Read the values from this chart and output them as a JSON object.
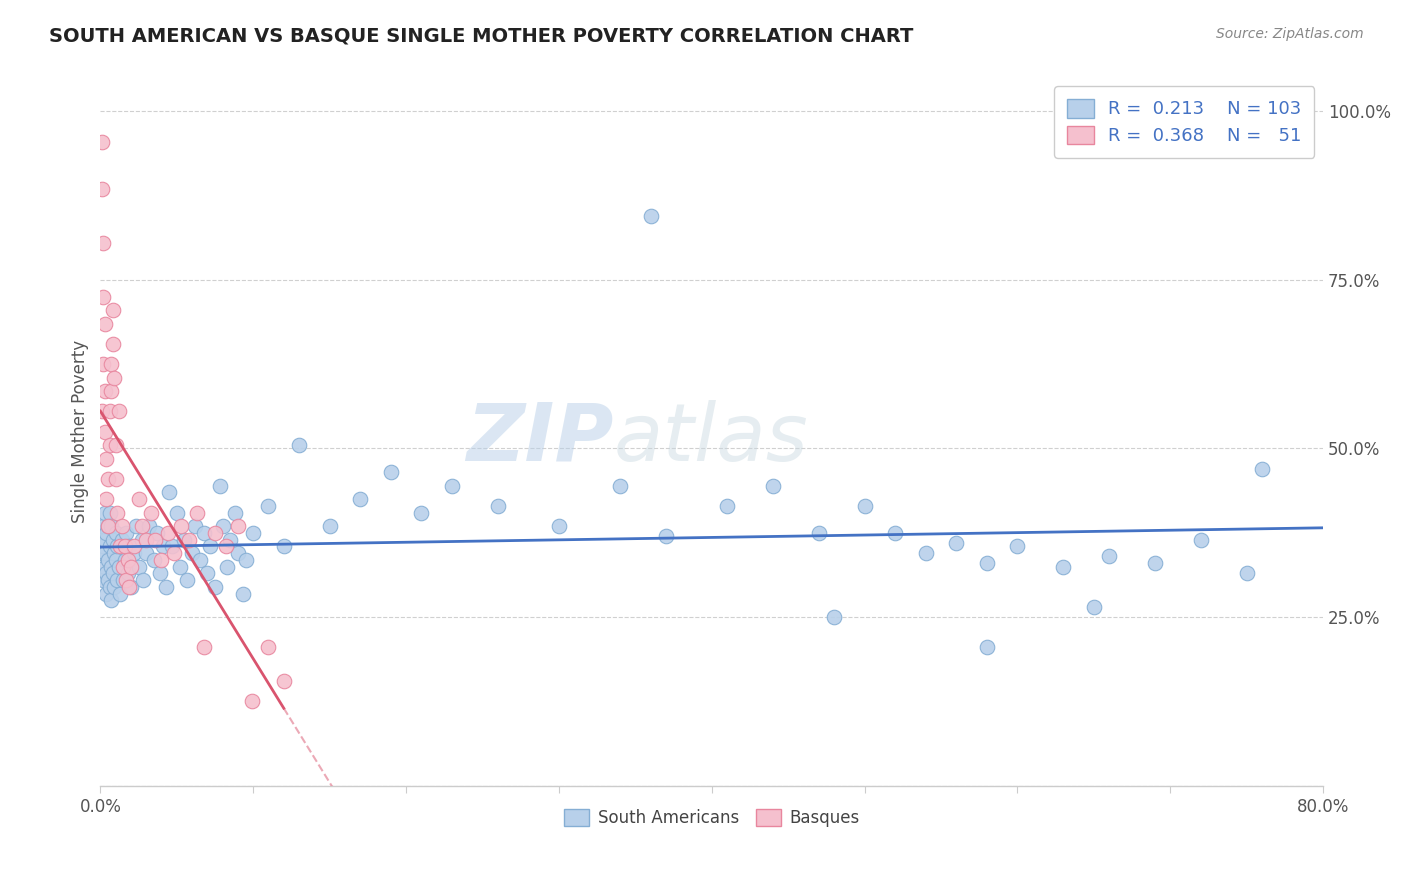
{
  "title": "SOUTH AMERICAN VS BASQUE SINGLE MOTHER POVERTY CORRELATION CHART",
  "source": "Source: ZipAtlas.com",
  "ylabel": "Single Mother Poverty",
  "watermark_zip": "ZIP",
  "watermark_atlas": "atlas",
  "blue_R": 0.213,
  "blue_N": 103,
  "pink_R": 0.368,
  "pink_N": 51,
  "blue_color": "#b8d0ea",
  "blue_edge": "#85aed4",
  "pink_color": "#f5c0ce",
  "pink_edge": "#e8869e",
  "blue_line_color": "#4472c4",
  "pink_line_color": "#d9546e",
  "legend_blue_label": "South Americans",
  "legend_pink_label": "Basques",
  "r_n_color": "#4472c4",
  "blue_scatter_x": [
    0.001,
    0.001,
    0.002,
    0.002,
    0.002,
    0.003,
    0.003,
    0.003,
    0.003,
    0.004,
    0.004,
    0.004,
    0.005,
    0.005,
    0.005,
    0.006,
    0.006,
    0.006,
    0.007,
    0.007,
    0.007,
    0.008,
    0.008,
    0.009,
    0.009,
    0.01,
    0.01,
    0.011,
    0.011,
    0.012,
    0.013,
    0.014,
    0.015,
    0.016,
    0.017,
    0.018,
    0.019,
    0.02,
    0.022,
    0.023,
    0.025,
    0.027,
    0.028,
    0.03,
    0.032,
    0.035,
    0.037,
    0.039,
    0.041,
    0.043,
    0.045,
    0.047,
    0.05,
    0.052,
    0.055,
    0.057,
    0.06,
    0.062,
    0.065,
    0.068,
    0.07,
    0.072,
    0.075,
    0.078,
    0.08,
    0.083,
    0.085,
    0.088,
    0.09,
    0.093,
    0.095,
    0.1,
    0.11,
    0.12,
    0.13,
    0.15,
    0.17,
    0.19,
    0.21,
    0.23,
    0.26,
    0.3,
    0.34,
    0.37,
    0.41,
    0.44,
    0.47,
    0.5,
    0.52,
    0.54,
    0.56,
    0.58,
    0.6,
    0.63,
    0.66,
    0.69,
    0.72,
    0.75,
    0.76,
    0.36,
    0.48,
    0.58,
    0.65
  ],
  "blue_scatter_y": [
    0.345,
    0.365,
    0.305,
    0.355,
    0.385,
    0.325,
    0.345,
    0.365,
    0.405,
    0.285,
    0.315,
    0.375,
    0.305,
    0.335,
    0.385,
    0.295,
    0.355,
    0.405,
    0.275,
    0.325,
    0.385,
    0.315,
    0.365,
    0.295,
    0.345,
    0.335,
    0.375,
    0.305,
    0.355,
    0.325,
    0.285,
    0.365,
    0.305,
    0.335,
    0.375,
    0.315,
    0.355,
    0.295,
    0.345,
    0.385,
    0.325,
    0.365,
    0.305,
    0.345,
    0.385,
    0.335,
    0.375,
    0.315,
    0.355,
    0.295,
    0.435,
    0.355,
    0.405,
    0.325,
    0.365,
    0.305,
    0.345,
    0.385,
    0.335,
    0.375,
    0.315,
    0.355,
    0.295,
    0.445,
    0.385,
    0.325,
    0.365,
    0.405,
    0.345,
    0.285,
    0.335,
    0.375,
    0.415,
    0.355,
    0.505,
    0.385,
    0.425,
    0.465,
    0.405,
    0.445,
    0.415,
    0.385,
    0.445,
    0.37,
    0.415,
    0.445,
    0.375,
    0.415,
    0.375,
    0.345,
    0.36,
    0.33,
    0.355,
    0.325,
    0.34,
    0.33,
    0.365,
    0.315,
    0.47,
    0.845,
    0.25,
    0.205,
    0.265
  ],
  "pink_scatter_x": [
    0.001,
    0.001,
    0.001,
    0.002,
    0.002,
    0.002,
    0.003,
    0.003,
    0.003,
    0.004,
    0.004,
    0.005,
    0.005,
    0.006,
    0.006,
    0.007,
    0.007,
    0.008,
    0.008,
    0.009,
    0.01,
    0.01,
    0.011,
    0.012,
    0.013,
    0.014,
    0.015,
    0.016,
    0.017,
    0.018,
    0.019,
    0.02,
    0.022,
    0.025,
    0.027,
    0.03,
    0.033,
    0.036,
    0.04,
    0.044,
    0.048,
    0.053,
    0.058,
    0.063,
    0.068,
    0.075,
    0.082,
    0.09,
    0.099,
    0.11,
    0.12
  ],
  "pink_scatter_y": [
    0.955,
    0.885,
    0.555,
    0.805,
    0.725,
    0.625,
    0.685,
    0.585,
    0.525,
    0.485,
    0.425,
    0.455,
    0.385,
    0.555,
    0.505,
    0.625,
    0.585,
    0.705,
    0.655,
    0.605,
    0.505,
    0.455,
    0.405,
    0.555,
    0.355,
    0.385,
    0.325,
    0.355,
    0.305,
    0.335,
    0.295,
    0.325,
    0.355,
    0.425,
    0.385,
    0.365,
    0.405,
    0.365,
    0.335,
    0.375,
    0.345,
    0.385,
    0.365,
    0.405,
    0.205,
    0.375,
    0.355,
    0.385,
    0.125,
    0.205,
    0.155
  ],
  "xlim": [
    0.0,
    0.8
  ],
  "ylim": [
    0.0,
    1.05
  ],
  "ytick_values": [
    0.0,
    0.25,
    0.5,
    0.75,
    1.0
  ],
  "xtick_values": [
    0.0,
    0.1,
    0.2,
    0.3,
    0.4,
    0.5,
    0.6,
    0.7,
    0.8
  ],
  "background_color": "#ffffff",
  "grid_color": "#d0d0d0",
  "title_color": "#222222",
  "source_color": "#888888",
  "axis_color": "#cccccc"
}
